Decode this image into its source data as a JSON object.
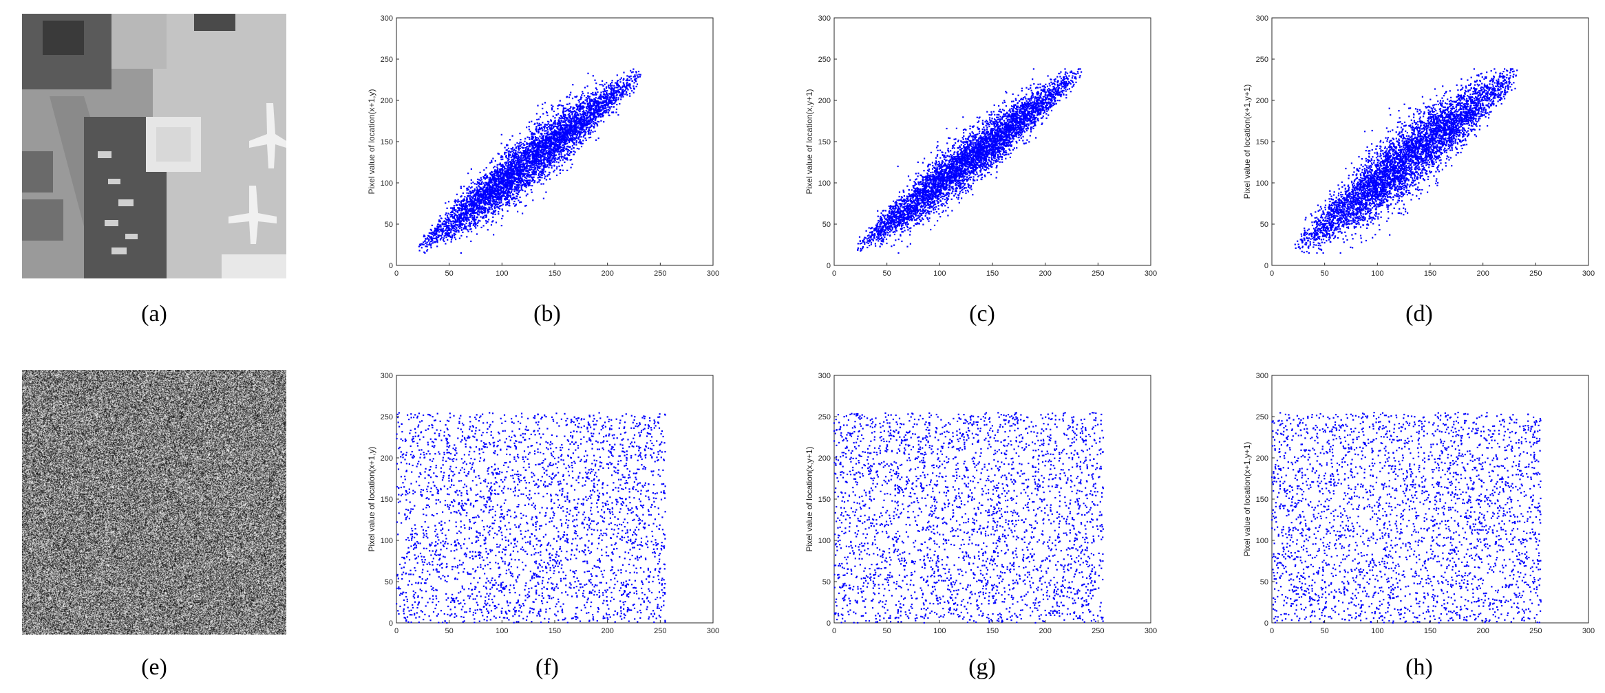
{
  "figure": {
    "panels": [
      {
        "id": "a",
        "caption": "(a)",
        "kind": "image",
        "description": "aerial grayscale image"
      },
      {
        "id": "b",
        "caption": "(b)",
        "kind": "scatter",
        "chart_index": 0
      },
      {
        "id": "c",
        "caption": "(c)",
        "kind": "scatter",
        "chart_index": 1
      },
      {
        "id": "d",
        "caption": "(d)",
        "kind": "scatter",
        "chart_index": 2
      },
      {
        "id": "e",
        "caption": "(e)",
        "kind": "image",
        "description": "noise-like encrypted image"
      },
      {
        "id": "f",
        "caption": "(f)",
        "kind": "scatter",
        "chart_index": 3
      },
      {
        "id": "g",
        "caption": "(g)",
        "kind": "scatter",
        "chart_index": 4
      },
      {
        "id": "h",
        "caption": "(h)",
        "kind": "scatter",
        "chart_index": 5
      }
    ]
  },
  "chart_data": [
    {
      "type": "scatter",
      "ylabel": "Pixel value of location(x+1,y)",
      "xlabel": "",
      "xlim": [
        0,
        300
      ],
      "ylim": [
        0,
        300
      ],
      "xticks": [
        0,
        50,
        100,
        150,
        200,
        250,
        300
      ],
      "yticks": [
        0,
        50,
        100,
        150,
        200,
        250,
        300
      ],
      "color": "#0000ff",
      "distribution": "correlated",
      "x_range": [
        20,
        235
      ],
      "spread": 12,
      "outliers": 30,
      "n_points": 5000
    },
    {
      "type": "scatter",
      "ylabel": "Pixel value of location(x,y+1)",
      "xlabel": "",
      "xlim": [
        0,
        300
      ],
      "ylim": [
        0,
        300
      ],
      "xticks": [
        0,
        50,
        100,
        150,
        200,
        250,
        300
      ],
      "yticks": [
        0,
        50,
        100,
        150,
        200,
        250,
        300
      ],
      "color": "#0000ff",
      "distribution": "correlated",
      "x_range": [
        20,
        235
      ],
      "spread": 11,
      "outliers": 30,
      "n_points": 5000
    },
    {
      "type": "scatter",
      "ylabel": "Pixel value of location(x+1,y+1)",
      "xlabel": "",
      "xlim": [
        0,
        300
      ],
      "ylim": [
        0,
        300
      ],
      "xticks": [
        0,
        50,
        100,
        150,
        200,
        250,
        300
      ],
      "yticks": [
        0,
        50,
        100,
        150,
        200,
        250,
        300
      ],
      "color": "#0000ff",
      "distribution": "correlated",
      "x_range": [
        20,
        235
      ],
      "spread": 15,
      "outliers": 40,
      "n_points": 5000
    },
    {
      "type": "scatter",
      "ylabel": "Pixel value of location(x+1,y)",
      "xlabel": "",
      "xlim": [
        0,
        300
      ],
      "ylim": [
        0,
        300
      ],
      "xticks": [
        0,
        50,
        100,
        150,
        200,
        250,
        300
      ],
      "yticks": [
        0,
        50,
        100,
        150,
        200,
        250,
        300
      ],
      "color": "#0000ff",
      "distribution": "uniform",
      "x_range": [
        0,
        255
      ],
      "y_range": [
        0,
        255
      ],
      "n_points": 3000
    },
    {
      "type": "scatter",
      "ylabel": "Pixel value of location(x,y+1)",
      "xlabel": "",
      "xlim": [
        0,
        300
      ],
      "ylim": [
        0,
        300
      ],
      "xticks": [
        0,
        50,
        100,
        150,
        200,
        250,
        300
      ],
      "yticks": [
        0,
        50,
        100,
        150,
        200,
        250,
        300
      ],
      "color": "#0000ff",
      "distribution": "uniform",
      "x_range": [
        0,
        255
      ],
      "y_range": [
        0,
        255
      ],
      "n_points": 3000
    },
    {
      "type": "scatter",
      "ylabel": "Pixel value of location(x+1,y+1)",
      "xlabel": "",
      "xlim": [
        0,
        300
      ],
      "ylim": [
        0,
        300
      ],
      "xticks": [
        0,
        50,
        100,
        150,
        200,
        250,
        300
      ],
      "yticks": [
        0,
        50,
        100,
        150,
        200,
        250,
        300
      ],
      "color": "#0000ff",
      "distribution": "uniform",
      "x_range": [
        0,
        255
      ],
      "y_range": [
        0,
        255
      ],
      "n_points": 3000
    }
  ]
}
